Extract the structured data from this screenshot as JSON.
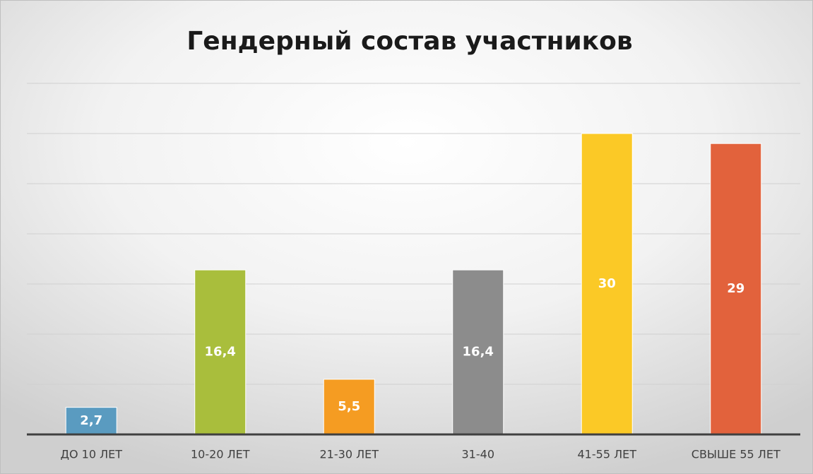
{
  "chart_data": {
    "type": "bar",
    "title": "Гендерный состав участников",
    "categories": [
      "ДО 10 ЛЕТ",
      "10-20 ЛЕТ",
      "21-30 ЛЕТ",
      "31-40",
      "41-55 ЛЕТ",
      "СВЫШЕ 55 ЛЕТ"
    ],
    "values": [
      2.7,
      16.4,
      5.5,
      16.4,
      30,
      29
    ],
    "value_labels": [
      "2,7",
      "16,4",
      "5,5",
      "16,4",
      "30",
      "29"
    ],
    "colors": [
      "#5a9bc0",
      "#a9be3c",
      "#f59c22",
      "#8c8c8c",
      "#fbc926",
      "#e2623c"
    ],
    "ylim": [
      0,
      35
    ],
    "yticks": [
      0,
      5,
      10,
      15,
      20,
      25,
      30,
      35
    ],
    "grid": true
  }
}
